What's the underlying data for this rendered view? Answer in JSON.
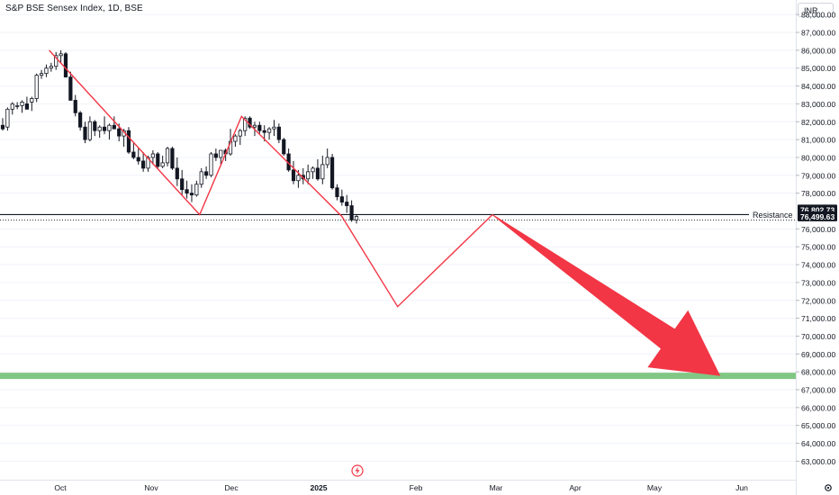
{
  "header": {
    "title": "S&P BSE Sensex Index, 1D, BSE",
    "currency": "INR"
  },
  "colors": {
    "up_candle_border": "#131722",
    "down_candle": "#131722",
    "zigzag": "#f23645",
    "arrow": "#f23645",
    "resistance_line": "#131722",
    "support_band": "#81c784",
    "grid": "#f0f3fa",
    "axis_text": "#131722"
  },
  "chart_data": {
    "type": "candlestick",
    "y_axis_ticks": [
      "88,000.00",
      "87,000.00",
      "86,000.00",
      "85,000.00",
      "84,000.00",
      "83,000.00",
      "82,000.00",
      "81,000.00",
      "80,000.00",
      "79,000.00",
      "78,000.00",
      "76,000.00",
      "75,000.00",
      "74,000.00",
      "73,000.00",
      "72,000.00",
      "71,000.00",
      "70,000.00",
      "69,000.00",
      "68,000.00",
      "67,000.00",
      "66,000.00",
      "65,000.00",
      "64,000.00",
      "63,000.00"
    ],
    "y_tick_values": [
      88000,
      87000,
      86000,
      85000,
      84000,
      83000,
      82000,
      81000,
      80000,
      79000,
      78000,
      76000,
      75000,
      74000,
      73000,
      72000,
      71000,
      70000,
      69000,
      68000,
      67000,
      66000,
      65000,
      64000,
      63000
    ],
    "x_axis_labels": [
      "Oct",
      "Nov",
      "Dec",
      "2025",
      "Feb",
      "Mar",
      "Apr",
      "May",
      "Jun"
    ],
    "ylim": [
      62600,
      89100
    ],
    "price_labels": [
      {
        "text": "76,802.73",
        "value": 76802.73
      },
      {
        "text": "76,499.63",
        "value": 76499.63
      }
    ],
    "resistance": {
      "label": "Resistance",
      "value": 76802.73
    },
    "support_band": {
      "value": 67800
    },
    "candles": [
      [
        81800,
        82200,
        81500,
        81600
      ],
      [
        81700,
        82800,
        81500,
        82700
      ],
      [
        82700,
        83100,
        82400,
        83000
      ],
      [
        82900,
        83100,
        82700,
        82900
      ],
      [
        82900,
        83200,
        82500,
        83100
      ],
      [
        83000,
        83400,
        82800,
        82700
      ],
      [
        83100,
        83400,
        82600,
        83300
      ],
      [
        83300,
        84700,
        83100,
        84600
      ],
      [
        84600,
        84900,
        84400,
        84700
      ],
      [
        84700,
        85200,
        84500,
        85000
      ],
      [
        85000,
        85300,
        84800,
        85100
      ],
      [
        85100,
        85900,
        84900,
        85700
      ],
      [
        85700,
        86000,
        85300,
        85800
      ],
      [
        85800,
        85900,
        84600,
        84500
      ],
      [
        84500,
        84800,
        83200,
        83200
      ],
      [
        83200,
        83500,
        82300,
        82500
      ],
      [
        82500,
        82600,
        81500,
        81700
      ],
      [
        81700,
        82000,
        80800,
        81000
      ],
      [
        81000,
        82300,
        80900,
        82000
      ],
      [
        82000,
        82100,
        81200,
        81500
      ],
      [
        81500,
        81800,
        81100,
        81700
      ],
      [
        81700,
        82300,
        81300,
        81500
      ],
      [
        81500,
        81900,
        81000,
        81800
      ],
      [
        81800,
        82300,
        81600,
        81600
      ],
      [
        81600,
        81900,
        80900,
        81200
      ],
      [
        81200,
        81600,
        80600,
        81500
      ],
      [
        81500,
        81700,
        80200,
        80300
      ],
      [
        80300,
        80800,
        79900,
        80000
      ],
      [
        80000,
        80500,
        79600,
        79800
      ],
      [
        79800,
        80300,
        79200,
        79400
      ],
      [
        79400,
        80100,
        79200,
        80000
      ],
      [
        80000,
        80400,
        79600,
        80200
      ],
      [
        80200,
        80300,
        79400,
        79500
      ],
      [
        79500,
        80100,
        79400,
        79700
      ],
      [
        79700,
        80600,
        79500,
        80500
      ],
      [
        80500,
        80600,
        79300,
        79400
      ],
      [
        79400,
        80000,
        78400,
        78800
      ],
      [
        78800,
        79300,
        77900,
        78200
      ],
      [
        78200,
        78700,
        77700,
        78000
      ],
      [
        78000,
        78500,
        77500,
        77900
      ],
      [
        77900,
        78700,
        77800,
        78500
      ],
      [
        78500,
        79400,
        78300,
        79200
      ],
      [
        79200,
        79500,
        78800,
        79000
      ],
      [
        79000,
        80300,
        78900,
        80200
      ],
      [
        80200,
        80500,
        79800,
        80000
      ],
      [
        80000,
        80400,
        79600,
        80400
      ],
      [
        80400,
        80500,
        79800,
        80200
      ],
      [
        80200,
        81600,
        80100,
        80900
      ],
      [
        80900,
        81300,
        80600,
        81200
      ],
      [
        81200,
        81600,
        80700,
        81500
      ],
      [
        81500,
        82300,
        81200,
        82200
      ],
      [
        82200,
        82300,
        81600,
        81700
      ],
      [
        81700,
        82000,
        81200,
        81800
      ],
      [
        81800,
        82000,
        81300,
        81500
      ],
      [
        81500,
        81800,
        80900,
        81400
      ],
      [
        81400,
        81700,
        81000,
        81600
      ],
      [
        81600,
        82100,
        81200,
        81700
      ],
      [
        81700,
        81900,
        80800,
        81000
      ],
      [
        81000,
        81100,
        80100,
        80200
      ],
      [
        80200,
        80500,
        79200,
        79300
      ],
      [
        79300,
        79800,
        78500,
        78700
      ],
      [
        78700,
        79300,
        78300,
        79000
      ],
      [
        79000,
        79400,
        78500,
        78800
      ],
      [
        78800,
        79600,
        78500,
        79200
      ],
      [
        79200,
        79500,
        78800,
        79400
      ],
      [
        79400,
        79900,
        78700,
        78800
      ],
      [
        78800,
        80100,
        78500,
        79600
      ],
      [
        79600,
        80500,
        79400,
        80000
      ],
      [
        80000,
        80200,
        78200,
        78300
      ],
      [
        78300,
        78500,
        77600,
        77800
      ],
      [
        77800,
        78200,
        77300,
        77500
      ],
      [
        77500,
        77900,
        76900,
        77300
      ],
      [
        77300,
        77600,
        76400,
        76500
      ],
      [
        76500,
        76800,
        76300,
        76700
      ]
    ],
    "zigzag_path": [
      {
        "date": "2024-09-27",
        "value": 86000
      },
      {
        "date": "2024-11-20",
        "value": 76800
      },
      {
        "date": "2024-12-05",
        "value": 82300
      },
      {
        "date": "2025-01-10",
        "value": 76700
      },
      {
        "date": "2025-01-30",
        "value": 71650
      },
      {
        "date": "2025-03-05",
        "value": 76800
      }
    ],
    "projection_arrow": {
      "from_date": "2025-03-05",
      "from_value": 76800,
      "to_date": "2025-05-20",
      "to_value": 67800
    }
  }
}
